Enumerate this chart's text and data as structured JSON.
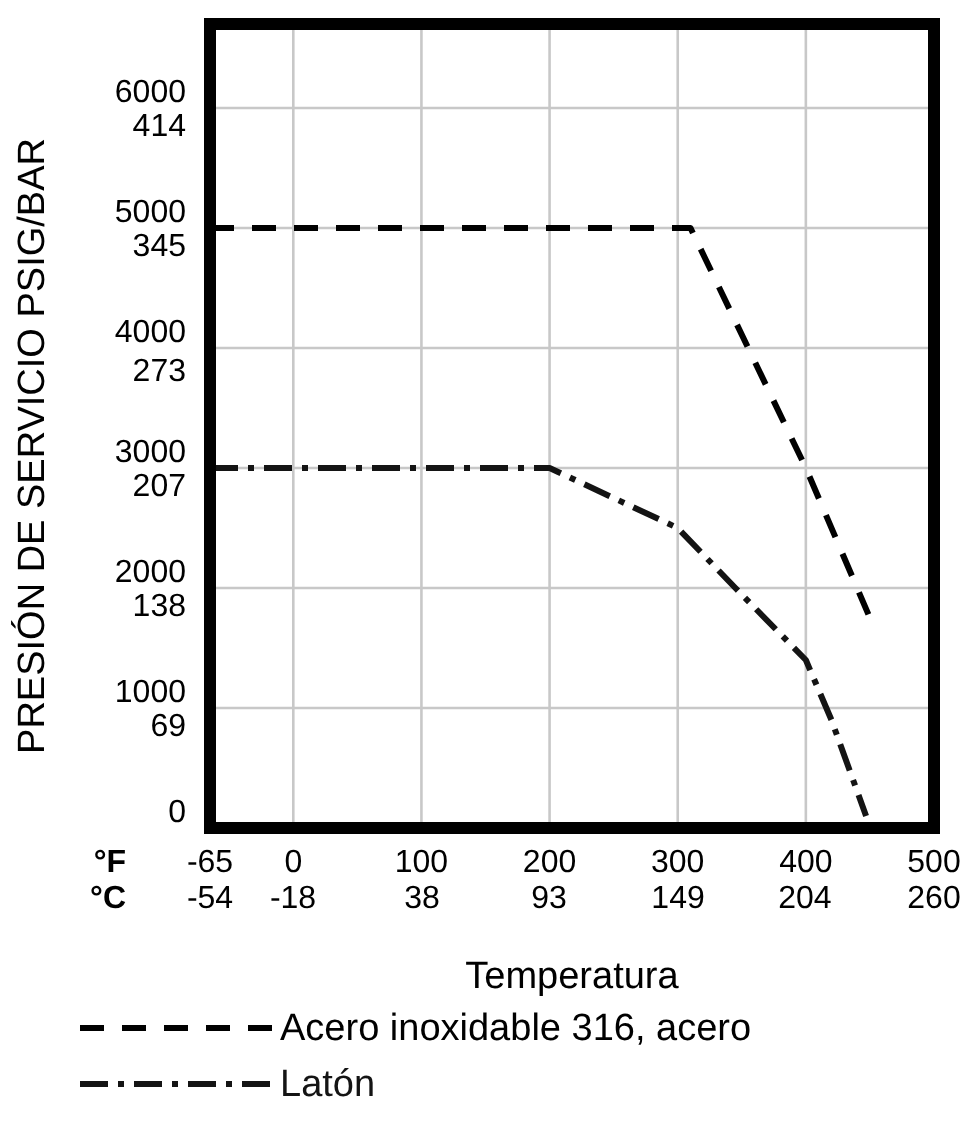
{
  "chart_data": {
    "type": "line",
    "xlabel": "Temperatura",
    "ylabel": "PRESIÓN DE SERVICIO PSIG/BAR",
    "xlim": [
      -65,
      500
    ],
    "xticks": [
      -65,
      0,
      100,
      200,
      300,
      400,
      500
    ],
    "x2lim": [
      -54,
      260
    ],
    "x2ticks": [
      -54,
      -18,
      38,
      93,
      149,
      204,
      260
    ],
    "ylim": [
      0,
      6700
    ],
    "yticks": [
      0,
      1000,
      2000,
      3000,
      4000,
      5000,
      6000
    ],
    "y2lim": [
      0,
      462
    ],
    "y2ticks": [
      69,
      138,
      207,
      273,
      345,
      414
    ],
    "grid": true,
    "legend": "bottom",
    "marker": "none",
    "annotations": [
      "°F",
      "°C"
    ],
    "series": [
      {
        "name": "Acero inoxidable 316, acero",
        "color": "#000000",
        "line_style": "dashed",
        "x": [
          -65,
          310,
          400,
          450
        ],
        "values": [
          5000,
          5000,
          3000,
          1750
        ]
      },
      {
        "name": "Latón",
        "color": "#141414",
        "line_style": "dashdot",
        "x": [
          -65,
          200,
          300,
          345,
          400,
          420,
          447
        ],
        "values": [
          3000,
          3000,
          2500,
          2000,
          1400,
          900,
          100
        ]
      }
    ]
  }
}
